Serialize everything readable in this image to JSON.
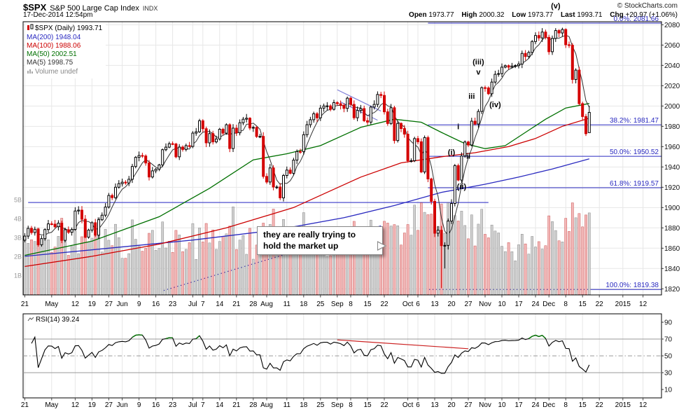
{
  "header": {
    "symbol": "$SPX",
    "name": "S&P 500 Large Cap Index",
    "exchange": "INDX",
    "datetime": "17-Dec-2014 12:54pm",
    "copyright": "© StockCharts.com",
    "quote": {
      "open_label": "Open",
      "open": "1973.77",
      "high_label": "High",
      "high": "2000.32",
      "low_label": "Low",
      "low": "1973.77",
      "last_label": "Last",
      "last": "1993.71",
      "chg_label": "Chg",
      "chg": "+20.97 (+1.06%)"
    }
  },
  "legend": {
    "title": "$SPX (Daily) 1993.71",
    "items": [
      {
        "label": "MA(200) 1948.04",
        "color": "#2a2ac0"
      },
      {
        "label": "MA(100) 1988.06",
        "color": "#cc0000"
      },
      {
        "label": "MA(50) 2002.51",
        "color": "#007000"
      },
      {
        "label": "MA(5) 1998.75",
        "color": "#333333"
      },
      {
        "label": "Volume undef",
        "color": "#888888"
      }
    ]
  },
  "callout": {
    "line1": "they are really trying to",
    "line2": "hold the market up"
  },
  "rsi_label": "RSI(14) 39.24",
  "chart_data": {
    "type": "candlestick+volume+rsi",
    "title": "$SPX S&P 500 Large Cap Index (Daily)",
    "price_axis": {
      "min": 1820,
      "max": 2080,
      "step": 20
    },
    "volume_axis_labels": [
      "1B",
      "2B",
      "3B",
      "4B",
      "5B"
    ],
    "rsi_axis": {
      "ticks": [
        90,
        70,
        50,
        30,
        10
      ],
      "overbought": 70,
      "oversold": 30,
      "mid": 50
    },
    "total_slots": 190,
    "x_ticks": [
      {
        "label": "21",
        "i": 0
      },
      {
        "label": "May",
        "i": 8
      },
      {
        "label": "12",
        "i": 15
      },
      {
        "label": "19",
        "i": 20
      },
      {
        "label": "27",
        "i": 25
      },
      {
        "label": "Jun",
        "i": 29
      },
      {
        "label": "9",
        "i": 34
      },
      {
        "label": "16",
        "i": 39
      },
      {
        "label": "23",
        "i": 44
      },
      {
        "label": "Jul",
        "i": 50
      },
      {
        "label": "7",
        "i": 53
      },
      {
        "label": "14",
        "i": 58
      },
      {
        "label": "21",
        "i": 63
      },
      {
        "label": "28",
        "i": 68
      },
      {
        "label": "Aug",
        "i": 72
      },
      {
        "label": "11",
        "i": 78
      },
      {
        "label": "18",
        "i": 83
      },
      {
        "label": "25",
        "i": 88
      },
      {
        "label": "Sep",
        "i": 93
      },
      {
        "label": "8",
        "i": 97
      },
      {
        "label": "15",
        "i": 102
      },
      {
        "label": "22",
        "i": 107
      },
      {
        "label": "Oct",
        "i": 114
      },
      {
        "label": "6",
        "i": 117
      },
      {
        "label": "13",
        "i": 122
      },
      {
        "label": "20",
        "i": 127
      },
      {
        "label": "27",
        "i": 132
      },
      {
        "label": "Nov",
        "i": 137
      },
      {
        "label": "10",
        "i": 142
      },
      {
        "label": "17",
        "i": 147
      },
      {
        "label": "24",
        "i": 152
      },
      {
        "label": "Dec",
        "i": 156
      },
      {
        "label": "8",
        "i": 161
      },
      {
        "label": "15",
        "i": 166
      },
      {
        "label": "22",
        "i": 171
      },
      {
        "label": "2015",
        "i": 178
      },
      {
        "label": "12",
        "i": 184
      }
    ],
    "closes": [
      1871.89,
      1879.55,
      1875.39,
      1878.61,
      1863.4,
      1869.43,
      1878.33,
      1883.95,
      1883.68,
      1881.14,
      1884.66,
      1867.72,
      1878.21,
      1875.63,
      1878.48,
      1896.65,
      1897.45,
      1888.53,
      1870.85,
      1877.86,
      1885.08,
      1872.83,
      1888.03,
      1892.49,
      1900.53,
      1911.91,
      1909.78,
      1920.03,
      1923.57,
      1924.97,
      1924.24,
      1927.88,
      1940.46,
      1949.44,
      1951.27,
      1950.79,
      1943.89,
      1930.11,
      1936.16,
      1937.78,
      1941.99,
      1956.98,
      1959.48,
      1962.87,
      1962.61,
      1949.98,
      1959.53,
      1957.22,
      1960.96,
      1960.23,
      1973.32,
      1974.62,
      1985.44,
      1977.65,
      1963.71,
      1972.83,
      1964.68,
      1967.57,
      1977.1,
      1973.28,
      1981.57,
      1958.12,
      1978.22,
      1973.63,
      1983.53,
      1987.01,
      1987.98,
      1978.34,
      1978.91,
      1969.95,
      1970.07,
      1930.67,
      1925.15,
      1938.99,
      1920.21,
      1920.24,
      1909.57,
      1931.59,
      1936.92,
      1933.75,
      1946.72,
      1955.18,
      1955.06,
      1971.74,
      1981.6,
      1986.51,
      1992.37,
      1988.4,
      1997.92,
      2000.02,
      2000.12,
      1996.74,
      2003.37,
      2002.28,
      2000.72,
      1997.65,
      2007.71,
      2001.54,
      1988.44,
      1995.69,
      1997.45,
      1985.54,
      1984.13,
      1998.98,
      2001.57,
      2011.36,
      2010.4,
      1994.29,
      1982.77,
      1998.3,
      1965.99,
      1982.85,
      1977.8,
      1972.29,
      1946.16,
      1946.17,
      1967.9,
      1964.82,
      1935.1,
      1968.89,
      1928.21,
      1906.13,
      1874.74,
      1877.7,
      1862.49,
      1862.76,
      1886.76,
      1904.01,
      1941.28,
      1927.11,
      1950.82,
      1964.58,
      1961.63,
      1985.05,
      1982.3,
      1994.65,
      2018.05,
      2017.81,
      2012.1,
      2023.57,
      2031.21,
      2031.92,
      2038.26,
      2039.68,
      2038.25,
      2039.33,
      2039.82,
      2041.32,
      2051.8,
      2048.72,
      2052.75,
      2063.5,
      2069.41,
      2067.03,
      2072.83,
      2067.56,
      2053.44,
      2066.55,
      2074.33,
      2071.92,
      2075.37,
      2060.31,
      2059.82,
      2026.14,
      2035.33,
      2002.33,
      1989.63,
      1972.74,
      1993.71
    ],
    "last_candle": {
      "open": 1973.77,
      "high": 2000.32,
      "low": 1973.77,
      "close": 1993.71
    },
    "wick_overrides": [
      {
        "i": 124,
        "low": 1820.66
      },
      {
        "i": 125,
        "low": 1840.0
      },
      {
        "i": 122,
        "low": 1871.0
      }
    ],
    "fib_levels": [
      {
        "label": "0.0%: 2081.66",
        "value": 2081.66,
        "from_i": 120
      },
      {
        "label": "38.2%: 1981.47",
        "value": 1981.47,
        "from_i": 120
      },
      {
        "label": "50.0%: 1950.52",
        "value": 1950.52,
        "from_i": 120
      },
      {
        "label": "61.8%: 1919.57",
        "value": 1919.57,
        "from_i": 120
      },
      {
        "label": "100.0%: 1819.38",
        "value": 1819.38,
        "from_i": 120
      }
    ],
    "ma_overlays": [
      {
        "name": "MA(200)",
        "color": "#2a2ac0",
        "points": [
          [
            0,
            1852
          ],
          [
            25,
            1860
          ],
          [
            50,
            1868
          ],
          [
            75,
            1878
          ],
          [
            95,
            1890
          ],
          [
            110,
            1902
          ],
          [
            124,
            1915
          ],
          [
            137,
            1923
          ],
          [
            147,
            1930
          ],
          [
            157,
            1938
          ],
          [
            168,
            1948
          ]
        ]
      },
      {
        "name": "MA(100)",
        "color": "#cc0000",
        "points": [
          [
            0,
            1842
          ],
          [
            20,
            1852
          ],
          [
            40,
            1864
          ],
          [
            60,
            1880
          ],
          [
            80,
            1900
          ],
          [
            100,
            1930
          ],
          [
            112,
            1944
          ],
          [
            124,
            1950
          ],
          [
            134,
            1954
          ],
          [
            144,
            1960
          ],
          [
            152,
            1968
          ],
          [
            160,
            1980
          ],
          [
            168,
            1988
          ]
        ]
      },
      {
        "name": "MA(50)",
        "color": "#007000",
        "points": [
          [
            0,
            1853
          ],
          [
            20,
            1867
          ],
          [
            40,
            1891
          ],
          [
            55,
            1919
          ],
          [
            68,
            1947
          ],
          [
            78,
            1953
          ],
          [
            88,
            1961
          ],
          [
            100,
            1979
          ],
          [
            110,
            1987
          ],
          [
            118,
            1984
          ],
          [
            124,
            1974
          ],
          [
            131,
            1963
          ],
          [
            137,
            1958
          ],
          [
            143,
            1961
          ],
          [
            149,
            1974
          ],
          [
            155,
            1987
          ],
          [
            161,
            1998
          ],
          [
            168,
            2002.5
          ]
        ]
      },
      {
        "name": "MA(5)",
        "color": "#333333",
        "window": 5
      }
    ],
    "trendlines": [
      {
        "name": "horizontal-support",
        "color": "#3a3ac8",
        "from": [
          1,
          1905
        ],
        "to": [
          138,
          1905
        ]
      },
      {
        "name": "rising-trendline",
        "color": "#3a3ac8",
        "from": [
          41,
          1818
        ],
        "to": [
          106,
          1882
        ]
      },
      {
        "name": "channel-upper",
        "color": "#8080d8",
        "from": [
          93,
          2016
        ],
        "to": [
          106,
          1995
        ]
      },
      {
        "name": "channel-lower",
        "color": "#8080d8",
        "from": [
          94,
          2004
        ],
        "to": [
          105,
          1986
        ]
      }
    ],
    "elliott_labels": [
      {
        "text": "(v)",
        "i": 158,
        "price": 2096
      },
      {
        "text": "(iii)",
        "i": 135,
        "price": 2041
      },
      {
        "text": "v",
        "i": 135,
        "price": 2031
      },
      {
        "text": "iii",
        "i": 133,
        "price": 2007
      },
      {
        "text": "(iv)",
        "i": 140,
        "price": 1999
      },
      {
        "text": "i",
        "i": 129,
        "price": 1977
      },
      {
        "text": "(i)",
        "i": 127,
        "price": 1952
      },
      {
        "text": "ii",
        "i": 132,
        "price": 1948
      },
      {
        "text": "(ii)",
        "i": 130,
        "price": 1918
      }
    ],
    "rsi_trendline": {
      "color": "#cc2222",
      "from": [
        93,
        69
      ],
      "to": [
        132,
        58.5
      ]
    },
    "volume_model": {
      "base_b": 1.7,
      "rand_b": 1.1,
      "chg_coef": 0.1,
      "chg_cap_b": 1.9,
      "oct_boost_b": 0.55,
      "oct_range": [
        115,
        141
      ],
      "dec_boost_b": 0.5,
      "dec_from": 160,
      "max_b": 4.85,
      "min_b": 1.5
    },
    "candle_colors": {
      "up_stroke": "#000000",
      "up_fill": "#ffffff",
      "down": "#d40000"
    },
    "volume_colors": {
      "up_fill": "#cfcfcf",
      "up_stroke": "#8a8a8a",
      "down_fill": "#f2b8b8",
      "down_stroke": "#cc5555"
    }
  }
}
